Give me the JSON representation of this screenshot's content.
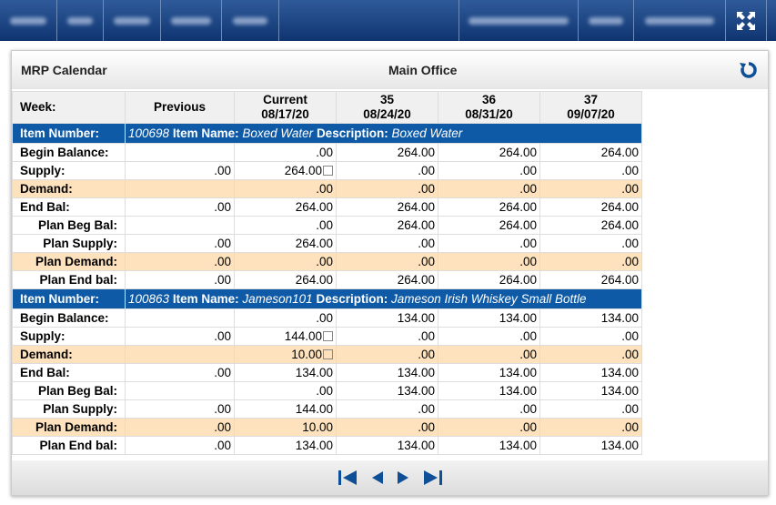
{
  "header": {
    "title": "MRP Calendar",
    "location": "Main Office"
  },
  "table": {
    "week_label": "Week:",
    "columns": [
      {
        "label": "Previous"
      },
      {
        "label": "Current",
        "date": "08/17/20"
      },
      {
        "label": "35",
        "date": "08/24/20"
      },
      {
        "label": "36",
        "date": "08/31/20"
      },
      {
        "label": "37",
        "date": "09/07/20"
      }
    ],
    "items": [
      {
        "number_label": "Item Number:",
        "number": "100698",
        "name_label": "Item Name:",
        "name": "Boxed Water",
        "description_label": "Description:",
        "description": "Boxed Water",
        "rows": [
          {
            "label": "Begin Balance:",
            "cells": [
              null,
              ".00",
              "264.00",
              "264.00",
              "264.00"
            ]
          },
          {
            "label": "Supply:",
            "cells": [
              ".00",
              "264.00",
              ".00",
              ".00",
              ".00"
            ],
            "linked": [
              1
            ]
          },
          {
            "label": "Demand:",
            "cells": [
              null,
              ".00",
              ".00",
              ".00",
              ".00"
            ],
            "highlight": true
          },
          {
            "label": "End Bal:",
            "cells": [
              ".00",
              "264.00",
              "264.00",
              "264.00",
              "264.00"
            ]
          },
          {
            "label": "Plan Beg Bal:",
            "cells": [
              null,
              ".00",
              "264.00",
              "264.00",
              "264.00"
            ],
            "indent": true
          },
          {
            "label": "Plan Supply:",
            "cells": [
              ".00",
              "264.00",
              ".00",
              ".00",
              ".00"
            ],
            "indent": true
          },
          {
            "label": "Plan Demand:",
            "cells": [
              ".00",
              ".00",
              ".00",
              ".00",
              ".00"
            ],
            "indent": true,
            "highlight": true
          },
          {
            "label": "Plan End bal:",
            "cells": [
              ".00",
              "264.00",
              "264.00",
              "264.00",
              "264.00"
            ],
            "indent": true
          }
        ]
      },
      {
        "number_label": "Item Number:",
        "number": "100863",
        "name_label": "Item Name:",
        "name": "Jameson101",
        "description_label": "Description:",
        "description": "Jameson Irish Whiskey Small Bottle",
        "rows": [
          {
            "label": "Begin Balance:",
            "cells": [
              null,
              ".00",
              "134.00",
              "134.00",
              "134.00"
            ]
          },
          {
            "label": "Supply:",
            "cells": [
              ".00",
              "144.00",
              ".00",
              ".00",
              ".00"
            ],
            "linked": [
              1
            ]
          },
          {
            "label": "Demand:",
            "cells": [
              null,
              "10.00",
              ".00",
              ".00",
              ".00"
            ],
            "linked": [
              1
            ],
            "highlight": true
          },
          {
            "label": "End Bal:",
            "cells": [
              ".00",
              "134.00",
              "134.00",
              "134.00",
              "134.00"
            ]
          },
          {
            "label": "Plan Beg Bal:",
            "cells": [
              null,
              ".00",
              "134.00",
              "134.00",
              "134.00"
            ],
            "indent": true
          },
          {
            "label": "Plan Supply:",
            "cells": [
              ".00",
              "144.00",
              ".00",
              ".00",
              ".00"
            ],
            "indent": true
          },
          {
            "label": "Plan Demand:",
            "cells": [
              ".00",
              "10.00",
              ".00",
              ".00",
              ".00"
            ],
            "indent": true,
            "highlight": true
          },
          {
            "label": "Plan End bal:",
            "cells": [
              ".00",
              "134.00",
              "134.00",
              "134.00",
              "134.00"
            ],
            "indent": true
          }
        ]
      }
    ]
  }
}
